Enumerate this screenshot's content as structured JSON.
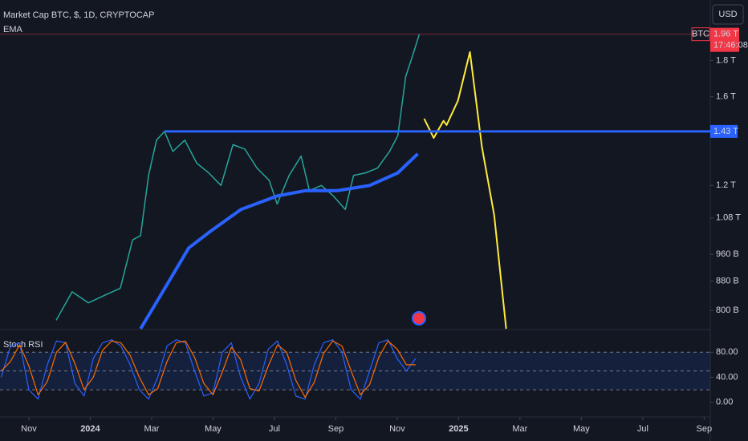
{
  "chart_data": [
    {
      "type": "line",
      "title": "Market Cap BTC, $, 1D, CRYPTOCAP",
      "currency": "USD",
      "log_scale": true,
      "xlim": [
        -0.94,
        22.2
      ],
      "xticks": [
        {
          "value": 0,
          "label": "Nov"
        },
        {
          "value": 2,
          "label": "2024"
        },
        {
          "value": 4,
          "label": "Mar"
        },
        {
          "value": 6,
          "label": "May"
        },
        {
          "value": 8,
          "label": "Jul"
        },
        {
          "value": 10,
          "label": "Sep"
        },
        {
          "value": 12,
          "label": "Nov"
        },
        {
          "value": 14,
          "label": "2025"
        },
        {
          "value": 16,
          "label": "Mar"
        },
        {
          "value": 18,
          "label": "May"
        },
        {
          "value": 20,
          "label": "Jul"
        },
        {
          "value": 22,
          "label": "Sep"
        }
      ],
      "ylim": [
        0.754,
        2.19
      ],
      "yticks": [
        {
          "value": 0.8,
          "label": "800 B"
        },
        {
          "value": 0.88,
          "label": "880 B"
        },
        {
          "value": 0.96,
          "label": "960 B"
        },
        {
          "value": 1.08,
          "label": "1.08 T"
        },
        {
          "value": 1.2,
          "label": "1.2 T"
        },
        {
          "value": 1.6,
          "label": "1.6 T"
        },
        {
          "value": 1.8,
          "label": "1.8 T"
        }
      ],
      "series": [
        {
          "name": "BTC",
          "color": "#26a69a",
          "x": [
            0.89,
            1.41,
            1.94,
            2.46,
            2.98,
            3.38,
            3.64,
            3.9,
            4.16,
            4.42,
            4.69,
            5.08,
            5.47,
            5.86,
            6.26,
            6.65,
            7.04,
            7.43,
            7.83,
            8.09,
            8.48,
            8.87,
            9.14,
            9.53,
            9.92,
            10.31,
            10.58,
            10.97,
            11.36,
            11.75,
            12.02,
            12.28,
            12.54,
            12.72
          ],
          "values": [
            0.775,
            0.85,
            0.82,
            0.84,
            0.86,
            1.006,
            1.02,
            1.24,
            1.39,
            1.43,
            1.34,
            1.39,
            1.29,
            1.25,
            1.2,
            1.37,
            1.35,
            1.27,
            1.22,
            1.13,
            1.24,
            1.32,
            1.18,
            1.2,
            1.16,
            1.11,
            1.24,
            1.25,
            1.27,
            1.34,
            1.41,
            1.71,
            1.85,
            1.96
          ]
        },
        {
          "name": "EMA",
          "color": "#2962ff",
          "x": [
            3.64,
            4.29,
            5.21,
            5.86,
            6.91,
            8.09,
            9.01,
            10.05,
            11.1,
            12.02,
            12.67
          ],
          "values": [
            0.754,
            0.84,
            0.98,
            1.03,
            1.11,
            1.16,
            1.18,
            1.18,
            1.2,
            1.25,
            1.33
          ]
        },
        {
          "color": "#ffeb3b",
          "x": [
            12.88,
            13.19,
            13.51,
            13.61,
            13.98,
            14.37,
            14.76,
            15.16,
            15.55
          ],
          "values": [
            1.49,
            1.4,
            1.48,
            1.46,
            1.58,
            1.85,
            1.36,
            1.09,
            0.754
          ]
        }
      ],
      "level": {
        "value": 1.43,
        "label": "1.43 T",
        "color": "#2962ff"
      },
      "last_price": {
        "value": 1.96,
        "label": "1.96 T",
        "symbol": "BTC",
        "countdown": "17:46:08",
        "color": "#f23645"
      }
    },
    {
      "type": "line",
      "title": "Stoch RSI",
      "ylim": [
        -23.5,
        115
      ],
      "yticks": [
        {
          "value": 80,
          "label": "80.00"
        },
        {
          "value": 40,
          "label": "40.00"
        },
        {
          "value": 0,
          "label": "0.00"
        }
      ],
      "levels": [
        80,
        50,
        20
      ],
      "series": [
        {
          "color": "#2962ff",
          "x": [
            -0.9,
            -0.6,
            -0.3,
            0,
            0.3,
            0.6,
            0.9,
            1.2,
            1.5,
            1.8,
            2.1,
            2.4,
            2.7,
            3,
            3.3,
            3.6,
            3.9,
            4.2,
            4.5,
            4.8,
            5.1,
            5.4,
            5.7,
            6,
            6.3,
            6.6,
            6.9,
            7.2,
            7.5,
            7.8,
            8.1,
            8.4,
            8.7,
            9,
            9.3,
            9.6,
            9.9,
            10.2,
            10.5,
            10.8,
            11.1,
            11.4,
            11.7,
            12,
            12.3,
            12.6
          ],
          "values": [
            40,
            90,
            95,
            20,
            5,
            60,
            98,
            95,
            30,
            10,
            70,
            95,
            100,
            90,
            60,
            20,
            5,
            40,
            90,
            100,
            95,
            50,
            10,
            15,
            80,
            95,
            40,
            5,
            30,
            85,
            98,
            60,
            10,
            5,
            60,
            95,
            100,
            80,
            20,
            5,
            50,
            95,
            100,
            70,
            50,
            70
          ]
        },
        {
          "color": "#ff6d00",
          "x": [
            -0.9,
            -0.6,
            -0.3,
            0,
            0.3,
            0.6,
            0.9,
            1.2,
            1.5,
            1.8,
            2.1,
            2.4,
            2.7,
            3,
            3.3,
            3.6,
            3.9,
            4.2,
            4.5,
            4.8,
            5.1,
            5.4,
            5.7,
            6,
            6.3,
            6.6,
            6.9,
            7.2,
            7.5,
            7.8,
            8.1,
            8.4,
            8.7,
            9,
            9.3,
            9.6,
            9.9,
            10.2,
            10.5,
            10.8,
            11.1,
            11.4,
            11.7,
            12,
            12.3,
            12.6
          ],
          "values": [
            50,
            65,
            92,
            58,
            12,
            33,
            80,
            96,
            62,
            20,
            40,
            83,
            98,
            95,
            75,
            40,
            12,
            22,
            65,
            95,
            98,
            72,
            30,
            12,
            48,
            88,
            68,
            22,
            18,
            58,
            92,
            80,
            35,
            8,
            32,
            78,
            98,
            90,
            50,
            12,
            28,
            72,
            98,
            85,
            60,
            60
          ]
        }
      ]
    }
  ]
}
